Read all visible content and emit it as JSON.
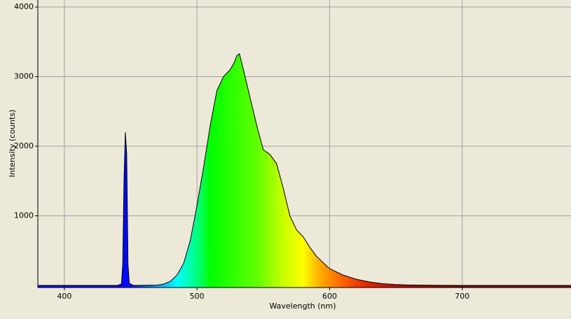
{
  "chart_data": {
    "type": "area",
    "x_label": "Wavelength (nm)",
    "y_label": "Intensity (counts)",
    "x": [
      380,
      440,
      443,
      444,
      445,
      446,
      447,
      448,
      449,
      452,
      470,
      475,
      480,
      485,
      490,
      495,
      500,
      505,
      510,
      515,
      520,
      525,
      528,
      530,
      532,
      535,
      540,
      545,
      550,
      555,
      560,
      565,
      570,
      575,
      580,
      585,
      590,
      595,
      600,
      610,
      620,
      630,
      640,
      650,
      660,
      680,
      700,
      782
    ],
    "values": [
      0,
      0,
      20,
      300,
      1500,
      2200,
      1900,
      300,
      30,
      0,
      5,
      20,
      60,
      150,
      320,
      650,
      1150,
      1700,
      2300,
      2800,
      3000,
      3100,
      3200,
      3300,
      3330,
      3100,
      2700,
      2300,
      1950,
      1880,
      1750,
      1400,
      1000,
      800,
      700,
      550,
      420,
      330,
      240,
      150,
      90,
      50,
      25,
      12,
      6,
      2,
      0,
      0
    ],
    "xlim": [
      380,
      782
    ],
    "ylim": [
      -30,
      4000
    ],
    "xticks": [
      400,
      500,
      600,
      700
    ],
    "yticks": [
      1000,
      2000,
      3000,
      4000
    ],
    "grid": true,
    "line_color": "#000000",
    "background": "#ece9d8"
  }
}
